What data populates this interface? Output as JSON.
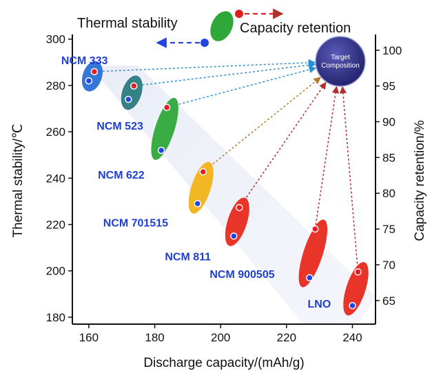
{
  "chart_data": {
    "type": "scatter",
    "xlabel": "Discharge capacity/(mAh/g)",
    "ylabel_left": "Thermal stability/℃",
    "ylabel_right": "Capacity retention/%",
    "xlim": [
      155,
      247
    ],
    "ylim_left": [
      177,
      302
    ],
    "ylim_right": [
      61.7,
      102.2
    ],
    "x_ticks": [
      "160",
      "180",
      "200",
      "220",
      "240"
    ],
    "y_left_ticks": [
      "180",
      "200",
      "220",
      "240",
      "260",
      "280",
      "300"
    ],
    "y_right_ticks": [
      "65",
      "70",
      "75",
      "80",
      "85",
      "90",
      "95",
      "100"
    ],
    "legend": {
      "thermal_label": "Thermal stability",
      "capacity_label": "Capacity retention"
    },
    "target_label_line1": "Target",
    "target_label_line2": "Composition",
    "target": {
      "x": 237,
      "retention": 99
    },
    "colors": {
      "thermal_marker": "#2244e0",
      "capacity_marker": "#e02020",
      "label": "#1f3fcf",
      "target": "#2e2e86"
    },
    "materials": [
      {
        "name": "NCM 333",
        "x": 160,
        "thermal": 282,
        "retention": 97,
        "color": "#2a6fd6"
      },
      {
        "name": "NCM 523",
        "x": 172,
        "thermal": 274,
        "retention": 95,
        "color": "#2b7b80"
      },
      {
        "name": "NCM 622",
        "x": 182,
        "thermal": 252,
        "retention": 92,
        "color": "#2fa83a"
      },
      {
        "name": "NCM 701515",
        "x": 193,
        "thermal": 229,
        "retention": 83,
        "color": "#f2b31a"
      },
      {
        "name": "NCM 811",
        "x": 204,
        "thermal": 215,
        "retention": 78,
        "color": "#e82a1e"
      },
      {
        "name": "NCM 900505",
        "x": 227,
        "thermal": 197,
        "retention": 75,
        "color": "#e82a1e"
      },
      {
        "name": "LNO",
        "x": 240,
        "thermal": 185,
        "retention": 69,
        "color": "#e82a1e"
      }
    ]
  }
}
